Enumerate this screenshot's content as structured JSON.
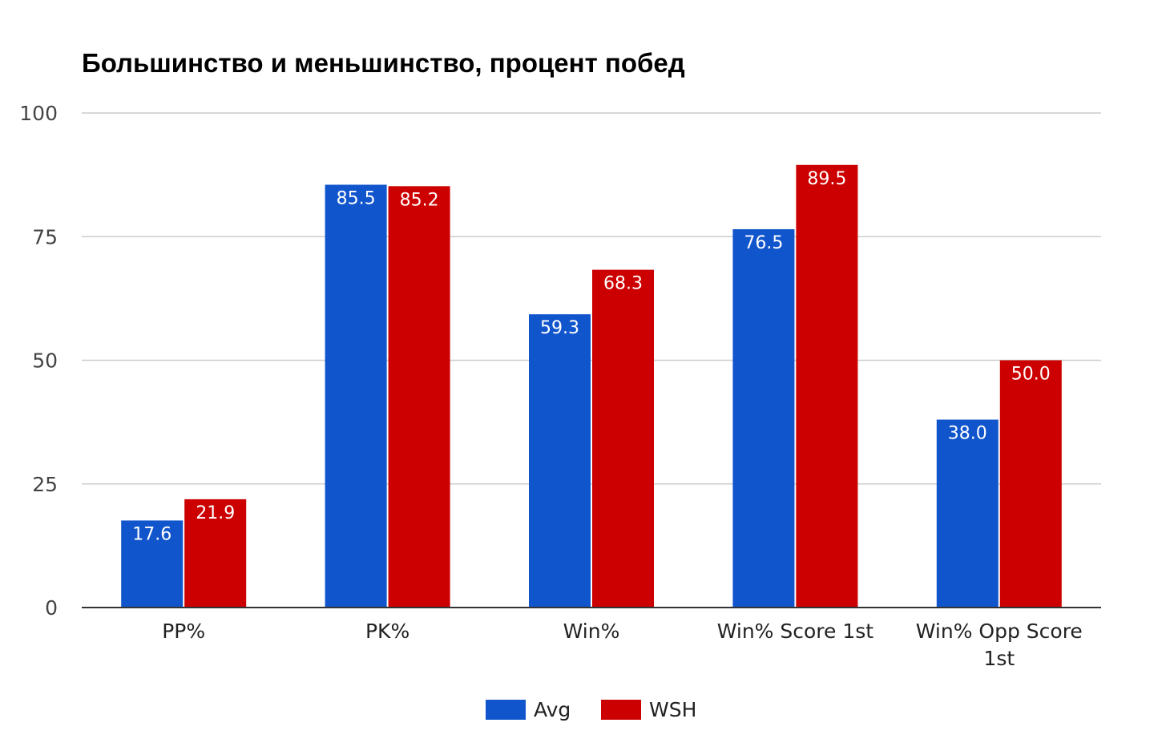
{
  "chart_data": {
    "type": "bar",
    "title": "Большинство и меньшинство, процент побед",
    "categories": [
      [
        "PP%"
      ],
      [
        "PK%"
      ],
      [
        "Win%"
      ],
      [
        "Win% Score 1st"
      ],
      [
        "Win% Opp Score",
        "1st"
      ]
    ],
    "series": [
      {
        "name": "Avg",
        "color": "#1155cc",
        "values": [
          17.6,
          85.5,
          59.3,
          76.5,
          38.0
        ]
      },
      {
        "name": "WSH",
        "color": "#cc0000",
        "values": [
          21.9,
          85.2,
          68.3,
          89.5,
          50.0
        ]
      }
    ],
    "data_labels": [
      [
        "17.6",
        "85.5",
        "59.3",
        "76.5",
        "38.0"
      ],
      [
        "21.9",
        "85.2",
        "68.3",
        "89.5",
        "50.0"
      ]
    ],
    "yticks": [
      0,
      25,
      50,
      75,
      100
    ],
    "ylim": [
      0,
      100
    ],
    "grid": true,
    "legend_position": "bottom",
    "xlabel": "",
    "ylabel": ""
  }
}
